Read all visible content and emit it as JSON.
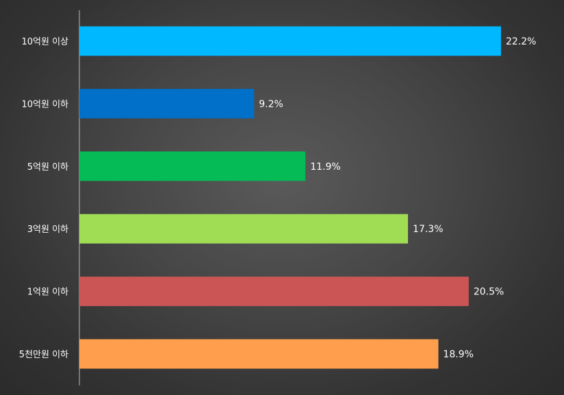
{
  "chart_data": {
    "type": "bar",
    "orientation": "horizontal",
    "categories": [
      "10억원 이상",
      "10억원 이하",
      "5억원 이하",
      "3억원 이하",
      "1억원 이하",
      "5천만원 이하"
    ],
    "values": [
      22.2,
      9.2,
      11.9,
      17.3,
      20.5,
      18.9
    ],
    "value_labels": [
      "22.2%",
      "9.2%",
      "11.9%",
      "17.3%",
      "20.5%",
      "18.9%"
    ],
    "colors": [
      "#00B8FF",
      "#0070C8",
      "#05BB55",
      "#A0DD55",
      "#CB5555",
      "#FF9F4D"
    ],
    "unit": "%",
    "xlim": [
      0,
      22.2
    ],
    "grid": false,
    "legend": "none"
  }
}
